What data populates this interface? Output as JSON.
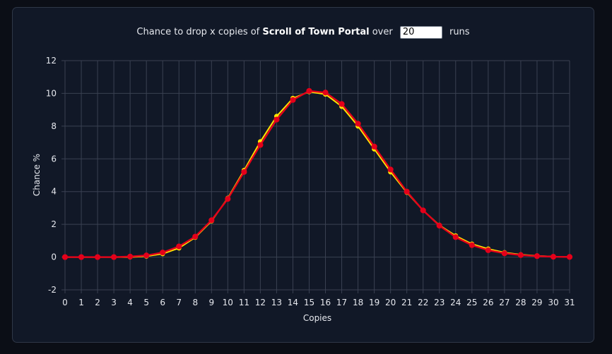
{
  "header": {
    "prefix": "Chance to drop x copies of",
    "item_name": "Scroll of Town Portal",
    "over": "over",
    "runs_value": "20",
    "suffix": "runs"
  },
  "colors": {
    "background": "#111827",
    "grid": "#3a4152",
    "text": "#e6e8ee",
    "series_yellow": "#ffe600",
    "series_red": "#e4001a"
  },
  "chart_data": {
    "type": "line",
    "title": "",
    "xlabel": "Copies",
    "ylabel": "Chance %",
    "x": [
      0,
      1,
      2,
      3,
      4,
      5,
      6,
      7,
      8,
      9,
      10,
      11,
      12,
      13,
      14,
      15,
      16,
      17,
      18,
      19,
      20,
      21,
      22,
      23,
      24,
      25,
      26,
      27,
      28,
      29,
      30,
      31
    ],
    "xlim": [
      0,
      31
    ],
    "ylim": [
      -2,
      12
    ],
    "yticks": [
      -2,
      0,
      2,
      4,
      6,
      8,
      10,
      12
    ],
    "grid": true,
    "legend": "none",
    "series": [
      {
        "color": "#ffe600",
        "values": [
          0,
          0,
          0,
          0,
          0,
          0.05,
          0.2,
          0.55,
          1.2,
          2.2,
          3.6,
          5.3,
          7.05,
          8.6,
          9.7,
          10.1,
          9.95,
          9.2,
          8.0,
          6.6,
          5.2,
          3.95,
          2.85,
          1.95,
          1.3,
          0.8,
          0.5,
          0.28,
          0.15,
          0.08,
          0.03,
          0.01
        ]
      },
      {
        "color": "#e4001a",
        "values": [
          0,
          0,
          0,
          0,
          0.03,
          0.1,
          0.28,
          0.65,
          1.25,
          2.25,
          3.55,
          5.2,
          6.85,
          8.4,
          9.6,
          10.15,
          10.05,
          9.35,
          8.15,
          6.75,
          5.35,
          4.0,
          2.85,
          1.92,
          1.22,
          0.73,
          0.42,
          0.23,
          0.12,
          0.06,
          0.02,
          0.01
        ]
      }
    ]
  }
}
